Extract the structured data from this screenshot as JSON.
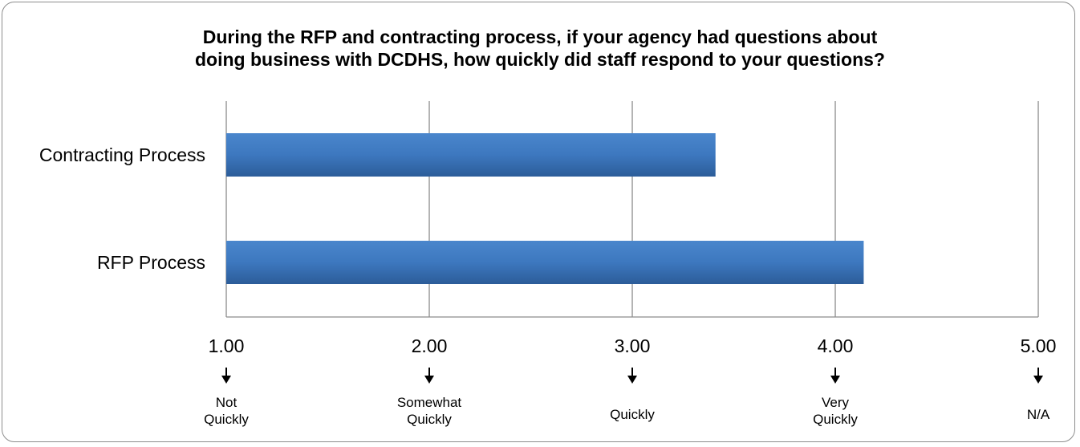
{
  "chart_data": {
    "type": "bar",
    "orientation": "horizontal",
    "title_lines": [
      "During the RFP and contracting process, if your agency had questions about",
      "doing business with DCDHS, how quickly did staff respond to your questions?"
    ],
    "categories": [
      "Contracting Process",
      "RFP Process"
    ],
    "values": [
      3.41,
      4.14
    ],
    "xlim": [
      1,
      5
    ],
    "x_ticks": [
      "1.00",
      "2.00",
      "3.00",
      "4.00",
      "5.00"
    ],
    "scale_labels": [
      [
        "Not",
        "Quickly"
      ],
      [
        "Somewhat",
        "Quickly"
      ],
      [
        "Quickly"
      ],
      [
        "Very",
        "Quickly"
      ],
      [
        "N/A"
      ]
    ],
    "grid": true,
    "bar_color": "#3d78bf",
    "bar_color_dark": "#2c5d99"
  }
}
